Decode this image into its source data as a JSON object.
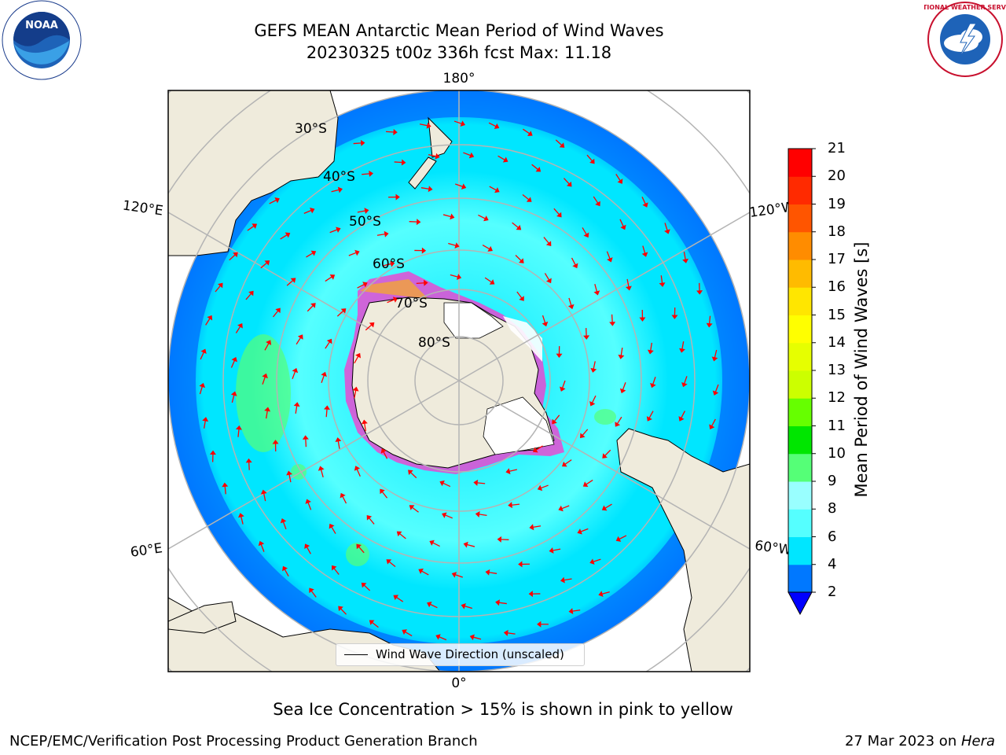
{
  "title": {
    "line1": "GEFS MEAN Antarctic Mean Period of Wind Waves",
    "line2": "20230325 t00z 336h fcst   Max: 11.18"
  },
  "logos": {
    "noaa_text": "NOAA",
    "nws_text": "NATIONAL WEATHER SERVICE"
  },
  "map": {
    "longitude_labels": {
      "top": "180°",
      "bottom": "0°",
      "left_upper": "120°E",
      "left_lower": "60°E",
      "right_upper": "120°W",
      "right_lower": "60°W"
    },
    "latitude_labels": [
      "30°S",
      "40°S",
      "50°S",
      "60°S",
      "70°S",
      "80°S"
    ],
    "legend": "Wind Wave Direction (unscaled)",
    "colors": {
      "land": "#efebdc",
      "ocean_low": "#0078ff",
      "ocean_mid": "#00e6ff",
      "ocean_high": "#55ffff",
      "arrow": "#ff0000",
      "sea_ice_edge": "#ff33cc",
      "grid": "#b4b4b4"
    }
  },
  "colorbar": {
    "title": "Mean Period of Wind Waves [s]",
    "ticks": [
      "2",
      "4",
      "6",
      "8",
      "9",
      "10",
      "11",
      "12",
      "13",
      "14",
      "15",
      "16",
      "17",
      "18",
      "19",
      "20",
      "21"
    ],
    "colors": [
      "#0000ff",
      "#0078ff",
      "#00e6ff",
      "#55ffff",
      "#99ffff",
      "#55ff77",
      "#00e600",
      "#66ff00",
      "#ccff00",
      "#e6ff00",
      "#ffff00",
      "#ffe600",
      "#ffbb00",
      "#ff8c00",
      "#ff5500",
      "#ff2a00",
      "#ff0000"
    ]
  },
  "subtitle": "Sea Ice Concentration > 15% is shown in pink to yellow",
  "footer": {
    "left": "NCEP/EMC/Verification Post Processing Product Generation Branch",
    "right_date": "27 Mar 2023 on ",
    "right_host": "Hera"
  }
}
